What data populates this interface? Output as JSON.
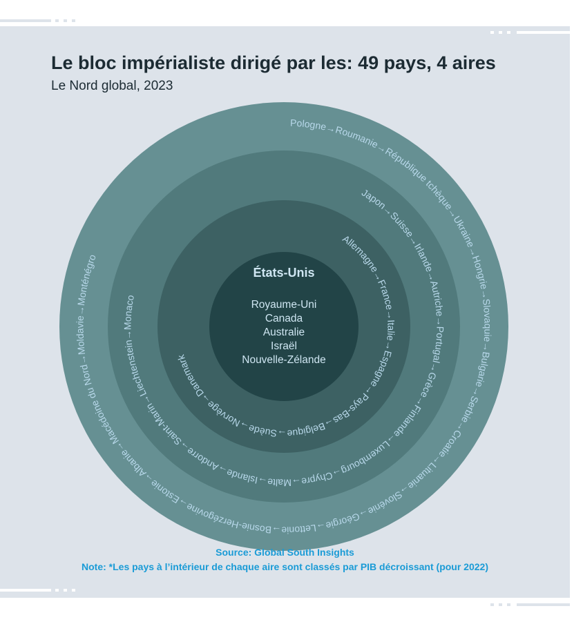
{
  "title": "Le bloc impérialiste dirigé par les: 49 pays, 4 aires",
  "subtitle": "Le Nord global, 2023",
  "diagram": {
    "center_title": "États-Unis",
    "center_items": [
      "Royaume-Uni",
      "Canada",
      "Australie",
      "Israël",
      "Nouvelle-Zélande"
    ],
    "rings": [
      {
        "label": "Allemagne→France→Italie→Espagne→Pays-Bas→Belgique→Suède→Norvège→Danemark",
        "color": "#3d6163"
      },
      {
        "label": "Japon→Suisse→Irlande→Autriche→Portugal→Grèce→Finlande→Luxembourg→Chypre→Malte→Islande→Andorre→Saint-Marin→Liechtenstein→Monaco",
        "color": "#517a7c"
      },
      {
        "label": "Pologne→Roumanie→République tchèque→Ukraine→Hongrie→Slovaquie→Bulgarie→Serbie→Croatie→Lituanie→Slovénie→Géorgie→Lettonie→Bosnie-Herzégovine→Estonie→Albanie→Macédoine du Nord→Moldavie→Monténégro",
        "color": "#669093"
      }
    ],
    "center_color": "#224447"
  },
  "source": "Source: Global South Insights",
  "note": "Note: *Les pays à l’intérieur de chaque aire sont classés par PIB décroissant (pour 2022)"
}
